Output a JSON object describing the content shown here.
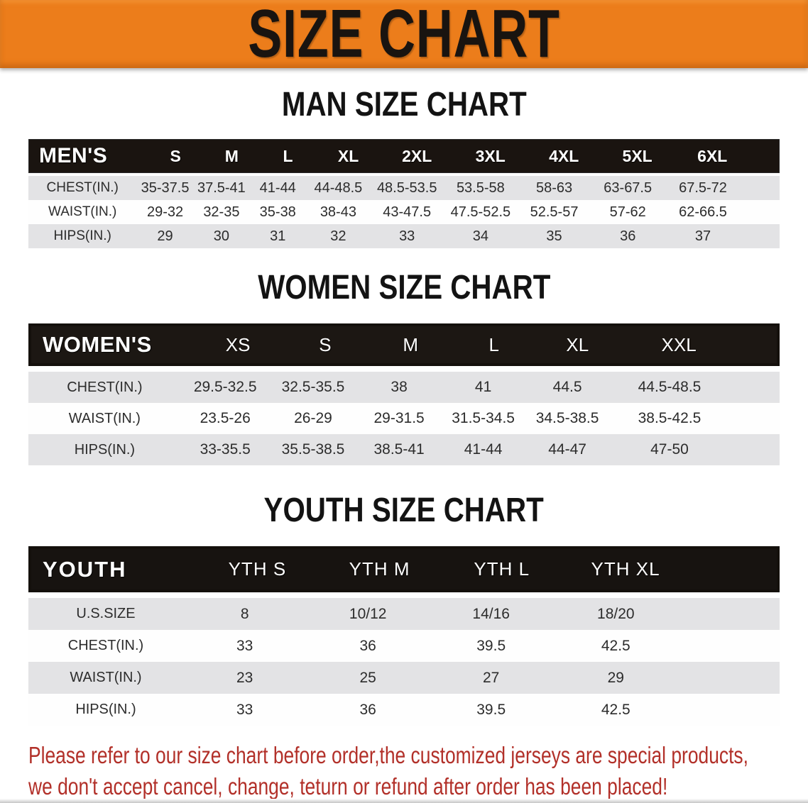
{
  "banner": {
    "title": "SIZE CHART"
  },
  "sections": {
    "men": {
      "heading": "MAN SIZE CHART",
      "table": {
        "header": [
          "MEN'S",
          "S",
          "M",
          "L",
          "XL",
          "2XL",
          "3XL",
          "4XL",
          "5XL",
          "6XL"
        ],
        "rows": [
          {
            "label": "CHEST(IN.)",
            "values": [
              "35-37.5",
              "37.5-41",
              "41-44",
              "44-48.5",
              "48.5-53.5",
              "53.5-58",
              "58-63",
              "63-67.5",
              "67.5-72"
            ]
          },
          {
            "label": "WAIST(IN.)",
            "values": [
              "29-32",
              "32-35",
              "35-38",
              "38-43",
              "43-47.5",
              "47.5-52.5",
              "52.5-57",
              "57-62",
              "62-66.5"
            ]
          },
          {
            "label": "HIPS(IN.)",
            "values": [
              "29",
              "30",
              "31",
              "32",
              "33",
              "34",
              "35",
              "36",
              "37"
            ]
          }
        ]
      }
    },
    "women": {
      "heading": "WOMEN SIZE CHART",
      "table": {
        "header": [
          "WOMEN'S",
          "XS",
          "S",
          "M",
          "L",
          "XL",
          "XXL"
        ],
        "rows": [
          {
            "label": "CHEST(IN.)",
            "values": [
              "29.5-32.5",
              "32.5-35.5",
              "38",
              "41",
              "44.5",
              "44.5-48.5"
            ]
          },
          {
            "label": "WAIST(IN.)",
            "values": [
              "23.5-26",
              "26-29",
              "29-31.5",
              "31.5-34.5",
              "34.5-38.5",
              "38.5-42.5"
            ]
          },
          {
            "label": "HIPS(IN.)",
            "values": [
              "33-35.5",
              "35.5-38.5",
              "38.5-41",
              "41-44",
              "44-47",
              "47-50"
            ]
          }
        ]
      }
    },
    "youth": {
      "heading": "YOUTH SIZE CHART",
      "table": {
        "header": [
          "YOUTH",
          "YTH S",
          "YTH M",
          "YTH L",
          "YTH XL"
        ],
        "rows": [
          {
            "label": "U.S.SIZE",
            "values": [
              "8",
              "10/12",
              "14/16",
              "18/20"
            ]
          },
          {
            "label": "CHEST(IN.)",
            "values": [
              "33",
              "36",
              "39.5",
              "42.5"
            ]
          },
          {
            "label": "WAIST(IN.)",
            "values": [
              "23",
              "25",
              "27",
              "29"
            ]
          },
          {
            "label": "HIPS(IN.)",
            "values": [
              "33",
              "36",
              "39.5",
              "42.5"
            ]
          }
        ]
      }
    }
  },
  "disclaimer": {
    "line1": "Please refer to our size chart before order,the customized jerseys are special products,",
    "line2": "we don't accept cancel, change, teturn or refund after order has been placed!"
  },
  "colors": {
    "banner_orange": "#ec7d1b",
    "band_black": "#1a1410",
    "stripe_gray": "#e3e3e5",
    "disclaimer_red": "#b23029"
  }
}
